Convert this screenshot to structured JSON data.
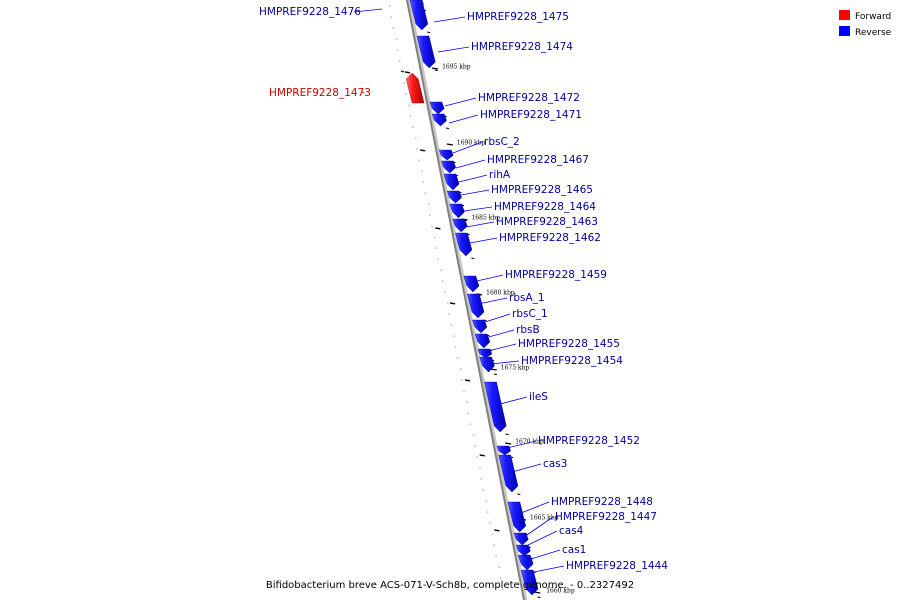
{
  "caption": "Bifidobacterium breve ACS-071-V-Sch8b, complete genome. - 0..2327492",
  "legend": {
    "position": "top-right",
    "items": [
      {
        "label": "Forward",
        "color": "#ff0000"
      },
      {
        "label": "Reverse",
        "color": "#0000ff"
      }
    ]
  },
  "colors": {
    "forward": "#ff0000",
    "reverse": "#0000ff",
    "backbone": "#808080",
    "reverse_label": "#000099",
    "forward_label": "#cc0000"
  },
  "kbp_labels": [
    "1695 kbp",
    "1690 kbp",
    "1685 kbp",
    "1680 kbp",
    "1675 kbp",
    "1670 kbp",
    "1665 kbp",
    "1660 kbp"
  ],
  "genes": [
    {
      "label": "HMPREF9228_1476",
      "strand": "reverse"
    },
    {
      "label": "HMPREF9228_1475",
      "strand": "reverse"
    },
    {
      "label": "HMPREF9228_1474",
      "strand": "reverse"
    },
    {
      "label": "HMPREF9228_1473",
      "strand": "forward"
    },
    {
      "label": "HMPREF9228_1472",
      "strand": "reverse"
    },
    {
      "label": "HMPREF9228_1471",
      "strand": "reverse"
    },
    {
      "label": "rbsC_2",
      "strand": "reverse"
    },
    {
      "label": "HMPREF9228_1467",
      "strand": "reverse"
    },
    {
      "label": "rihA",
      "strand": "reverse"
    },
    {
      "label": "HMPREF9228_1465",
      "strand": "reverse"
    },
    {
      "label": "HMPREF9228_1464",
      "strand": "reverse"
    },
    {
      "label": "HMPREF9228_1463",
      "strand": "reverse"
    },
    {
      "label": "HMPREF9228_1462",
      "strand": "reverse"
    },
    {
      "label": "HMPREF9228_1459",
      "strand": "reverse"
    },
    {
      "label": "rbsA_1",
      "strand": "reverse"
    },
    {
      "label": "rbsC_1",
      "strand": "reverse"
    },
    {
      "label": "rbsB",
      "strand": "reverse"
    },
    {
      "label": "HMPREF9228_1455",
      "strand": "reverse"
    },
    {
      "label": "HMPREF9228_1454",
      "strand": "reverse"
    },
    {
      "label": "ileS",
      "strand": "reverse"
    },
    {
      "label": "HMPREF9228_1452",
      "strand": "reverse"
    },
    {
      "label": "cas3",
      "strand": "reverse"
    },
    {
      "label": "HMPREF9228_1448",
      "strand": "reverse"
    },
    {
      "label": "HMPREF9228_1447",
      "strand": "reverse"
    },
    {
      "label": "cas4",
      "strand": "reverse"
    },
    {
      "label": "cas1",
      "strand": "reverse"
    },
    {
      "label": "HMPREF9228_1444",
      "strand": "reverse"
    }
  ]
}
